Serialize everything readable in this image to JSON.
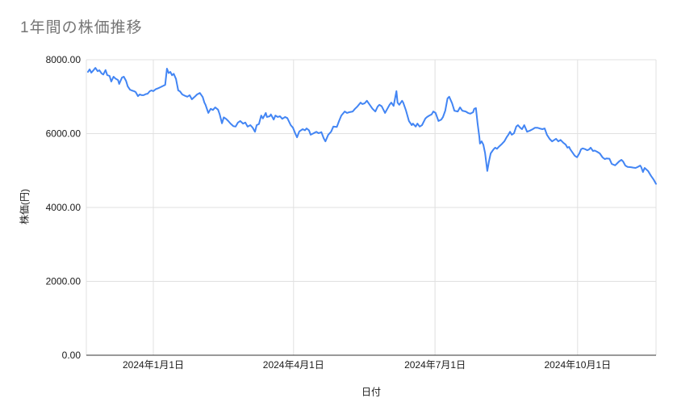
{
  "colors": {
    "line": "#4285f4",
    "gridline": "#e0e0e0",
    "axis_line": "#333333",
    "title_text": "#757575",
    "label_text": "#1a1a1a",
    "background": "#ffffff"
  },
  "chart_data": {
    "type": "line",
    "title": "1年間の株価推移",
    "xlabel": "日付",
    "ylabel": "株価(円)",
    "ylim": [
      0,
      8000
    ],
    "grid": true,
    "legend": "none",
    "x_domain_note": "pos = fraction along x axis; axis spans approx. 2023-11-20 to 2024-11-20, daily closing stock price in JPY",
    "y_ticks": [
      {
        "label": "8000.00",
        "value": 8000
      },
      {
        "label": "6000.00",
        "value": 6000
      },
      {
        "label": "4000.00",
        "value": 4000
      },
      {
        "label": "2000.00",
        "value": 2000
      },
      {
        "label": "0.00",
        "value": 0
      }
    ],
    "x_ticks": [
      {
        "label": "2024年1月1日",
        "pos": 0.115
      },
      {
        "label": "2024年4月1日",
        "pos": 0.362
      },
      {
        "label": "2024年7月1日",
        "pos": 0.611
      },
      {
        "label": "2024年10月1日",
        "pos": 0.862
      }
    ],
    "series": [
      {
        "name": "株価(円)",
        "color": "#4285f4",
        "points": [
          [
            0.0,
            7670
          ],
          [
            0.003,
            7740
          ],
          [
            0.006,
            7650
          ],
          [
            0.01,
            7720
          ],
          [
            0.013,
            7780
          ],
          [
            0.017,
            7690
          ],
          [
            0.02,
            7715
          ],
          [
            0.024,
            7630
          ],
          [
            0.027,
            7600
          ],
          [
            0.031,
            7720
          ],
          [
            0.034,
            7585
          ],
          [
            0.038,
            7560
          ],
          [
            0.041,
            7410
          ],
          [
            0.045,
            7540
          ],
          [
            0.048,
            7495
          ],
          [
            0.053,
            7450
          ],
          [
            0.055,
            7345
          ],
          [
            0.06,
            7520
          ],
          [
            0.063,
            7540
          ],
          [
            0.067,
            7430
          ],
          [
            0.07,
            7280
          ],
          [
            0.074,
            7190
          ],
          [
            0.077,
            7170
          ],
          [
            0.081,
            7150
          ],
          [
            0.084,
            7125
          ],
          [
            0.088,
            7015
          ],
          [
            0.091,
            7060
          ],
          [
            0.095,
            7040
          ],
          [
            0.098,
            7040
          ],
          [
            0.102,
            7070
          ],
          [
            0.105,
            7080
          ],
          [
            0.109,
            7150
          ],
          [
            0.112,
            7170
          ],
          [
            0.115,
            7150
          ],
          [
            0.119,
            7200
          ],
          [
            0.124,
            7230
          ],
          [
            0.128,
            7260
          ],
          [
            0.132,
            7290
          ],
          [
            0.136,
            7320
          ],
          [
            0.139,
            7760
          ],
          [
            0.142,
            7640
          ],
          [
            0.145,
            7670
          ],
          [
            0.148,
            7580
          ],
          [
            0.151,
            7620
          ],
          [
            0.155,
            7480
          ],
          [
            0.159,
            7170
          ],
          [
            0.162,
            7145
          ],
          [
            0.166,
            7060
          ],
          [
            0.17,
            7030
          ],
          [
            0.175,
            7000
          ],
          [
            0.179,
            7040
          ],
          [
            0.183,
            6930
          ],
          [
            0.188,
            7000
          ],
          [
            0.192,
            7060
          ],
          [
            0.197,
            7100
          ],
          [
            0.202,
            6990
          ],
          [
            0.205,
            6840
          ],
          [
            0.207,
            6780
          ],
          [
            0.212,
            6560
          ],
          [
            0.216,
            6670
          ],
          [
            0.22,
            6640
          ],
          [
            0.224,
            6710
          ],
          [
            0.229,
            6650
          ],
          [
            0.232,
            6520
          ],
          [
            0.236,
            6280
          ],
          [
            0.239,
            6440
          ],
          [
            0.243,
            6400
          ],
          [
            0.247,
            6340
          ],
          [
            0.251,
            6270
          ],
          [
            0.256,
            6200
          ],
          [
            0.26,
            6190
          ],
          [
            0.264,
            6300
          ],
          [
            0.268,
            6340
          ],
          [
            0.273,
            6270
          ],
          [
            0.277,
            6300
          ],
          [
            0.281,
            6190
          ],
          [
            0.286,
            6230
          ],
          [
            0.29,
            6160
          ],
          [
            0.294,
            6050
          ],
          [
            0.297,
            6230
          ],
          [
            0.301,
            6260
          ],
          [
            0.305,
            6490
          ],
          [
            0.308,
            6410
          ],
          [
            0.313,
            6560
          ],
          [
            0.315,
            6450
          ],
          [
            0.32,
            6470
          ],
          [
            0.322,
            6520
          ],
          [
            0.327,
            6380
          ],
          [
            0.33,
            6490
          ],
          [
            0.334,
            6450
          ],
          [
            0.338,
            6470
          ],
          [
            0.342,
            6400
          ],
          [
            0.347,
            6450
          ],
          [
            0.351,
            6420
          ],
          [
            0.357,
            6230
          ],
          [
            0.361,
            6160
          ],
          [
            0.365,
            6000
          ],
          [
            0.368,
            5900
          ],
          [
            0.372,
            6060
          ],
          [
            0.378,
            6120
          ],
          [
            0.382,
            6090
          ],
          [
            0.385,
            6140
          ],
          [
            0.389,
            6090
          ],
          [
            0.392,
            5970
          ],
          [
            0.396,
            6000
          ],
          [
            0.402,
            6050
          ],
          [
            0.406,
            6010
          ],
          [
            0.411,
            6040
          ],
          [
            0.415,
            5870
          ],
          [
            0.418,
            5790
          ],
          [
            0.423,
            5970
          ],
          [
            0.428,
            6050
          ],
          [
            0.432,
            6190
          ],
          [
            0.438,
            6180
          ],
          [
            0.442,
            6340
          ],
          [
            0.446,
            6490
          ],
          [
            0.452,
            6600
          ],
          [
            0.456,
            6560
          ],
          [
            0.46,
            6580
          ],
          [
            0.466,
            6600
          ],
          [
            0.47,
            6670
          ],
          [
            0.474,
            6730
          ],
          [
            0.48,
            6840
          ],
          [
            0.483,
            6800
          ],
          [
            0.487,
            6820
          ],
          [
            0.491,
            6890
          ],
          [
            0.496,
            6780
          ],
          [
            0.501,
            6670
          ],
          [
            0.506,
            6600
          ],
          [
            0.51,
            6730
          ],
          [
            0.513,
            6780
          ],
          [
            0.517,
            6740
          ],
          [
            0.523,
            6560
          ],
          [
            0.527,
            6670
          ],
          [
            0.531,
            6780
          ],
          [
            0.534,
            6840
          ],
          [
            0.538,
            6750
          ],
          [
            0.543,
            7150
          ],
          [
            0.545,
            6840
          ],
          [
            0.548,
            6780
          ],
          [
            0.553,
            6890
          ],
          [
            0.555,
            6840
          ],
          [
            0.56,
            6620
          ],
          [
            0.565,
            6340
          ],
          [
            0.57,
            6230
          ],
          [
            0.572,
            6270
          ],
          [
            0.577,
            6190
          ],
          [
            0.58,
            6270
          ],
          [
            0.584,
            6190
          ],
          [
            0.588,
            6230
          ],
          [
            0.594,
            6410
          ],
          [
            0.597,
            6450
          ],
          [
            0.601,
            6490
          ],
          [
            0.605,
            6520
          ],
          [
            0.608,
            6600
          ],
          [
            0.612,
            6560
          ],
          [
            0.617,
            6340
          ],
          [
            0.622,
            6380
          ],
          [
            0.625,
            6450
          ],
          [
            0.629,
            6620
          ],
          [
            0.633,
            6950
          ],
          [
            0.636,
            7000
          ],
          [
            0.641,
            6820
          ],
          [
            0.645,
            6620
          ],
          [
            0.651,
            6600
          ],
          [
            0.655,
            6710
          ],
          [
            0.659,
            6620
          ],
          [
            0.665,
            6600
          ],
          [
            0.669,
            6560
          ],
          [
            0.673,
            6540
          ],
          [
            0.678,
            6580
          ],
          [
            0.68,
            6670
          ],
          [
            0.683,
            6690
          ],
          [
            0.686,
            6270
          ],
          [
            0.689,
            5900
          ],
          [
            0.69,
            5730
          ],
          [
            0.693,
            5790
          ],
          [
            0.696,
            5700
          ],
          [
            0.699,
            5480
          ],
          [
            0.703,
            4990
          ],
          [
            0.706,
            5250
          ],
          [
            0.709,
            5465
          ],
          [
            0.712,
            5530
          ],
          [
            0.714,
            5575
          ],
          [
            0.717,
            5620
          ],
          [
            0.72,
            5590
          ],
          [
            0.723,
            5640
          ],
          [
            0.729,
            5725
          ],
          [
            0.733,
            5790
          ],
          [
            0.737,
            5900
          ],
          [
            0.74,
            5970
          ],
          [
            0.743,
            6050
          ],
          [
            0.746,
            5970
          ],
          [
            0.75,
            6010
          ],
          [
            0.754,
            6190
          ],
          [
            0.757,
            6230
          ],
          [
            0.761,
            6160
          ],
          [
            0.764,
            6120
          ],
          [
            0.768,
            6230
          ],
          [
            0.773,
            6050
          ],
          [
            0.778,
            6080
          ],
          [
            0.783,
            6120
          ],
          [
            0.787,
            6160
          ],
          [
            0.791,
            6160
          ],
          [
            0.795,
            6140
          ],
          [
            0.8,
            6120
          ],
          [
            0.804,
            6140
          ],
          [
            0.808,
            5970
          ],
          [
            0.813,
            5850
          ],
          [
            0.817,
            5790
          ],
          [
            0.821,
            5830
          ],
          [
            0.824,
            5860
          ],
          [
            0.828,
            5790
          ],
          [
            0.832,
            5830
          ],
          [
            0.837,
            5750
          ],
          [
            0.841,
            5700
          ],
          [
            0.844,
            5620
          ],
          [
            0.847,
            5640
          ],
          [
            0.849,
            5575
          ],
          [
            0.852,
            5510
          ],
          [
            0.857,
            5400
          ],
          [
            0.861,
            5360
          ],
          [
            0.865,
            5465
          ],
          [
            0.868,
            5575
          ],
          [
            0.871,
            5600
          ],
          [
            0.875,
            5580
          ],
          [
            0.879,
            5550
          ],
          [
            0.882,
            5570
          ],
          [
            0.885,
            5620
          ],
          [
            0.889,
            5530
          ],
          [
            0.892,
            5540
          ],
          [
            0.896,
            5510
          ],
          [
            0.901,
            5465
          ],
          [
            0.906,
            5355
          ],
          [
            0.91,
            5310
          ],
          [
            0.913,
            5330
          ],
          [
            0.918,
            5320
          ],
          [
            0.922,
            5180
          ],
          [
            0.928,
            5140
          ],
          [
            0.93,
            5170
          ],
          [
            0.935,
            5245
          ],
          [
            0.939,
            5290
          ],
          [
            0.942,
            5245
          ],
          [
            0.946,
            5135
          ],
          [
            0.95,
            5100
          ],
          [
            0.956,
            5090
          ],
          [
            0.96,
            5080
          ],
          [
            0.964,
            5070
          ],
          [
            0.967,
            5090
          ],
          [
            0.972,
            5135
          ],
          [
            0.974,
            5090
          ],
          [
            0.977,
            4960
          ],
          [
            0.98,
            5070
          ],
          [
            0.983,
            5030
          ],
          [
            0.986,
            4990
          ],
          [
            0.991,
            4860
          ],
          [
            0.996,
            4750
          ],
          [
            1.0,
            4640
          ]
        ]
      }
    ]
  }
}
